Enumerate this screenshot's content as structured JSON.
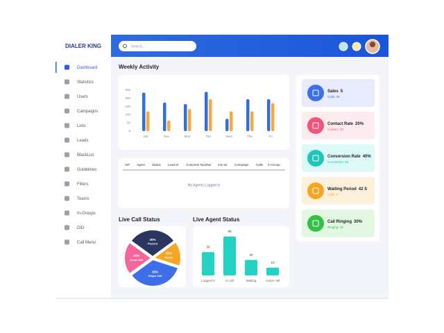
{
  "logo": "DIALER KING",
  "menu": [
    "Dashboard",
    "Statistics",
    "Users",
    "Campaigns",
    "Lists",
    "Leads",
    "BlackList",
    "Guidelines",
    "Filters",
    "Teams",
    "In-Groups",
    "DID",
    "Call Menu"
  ],
  "search_placeholder": "Search...",
  "weekly_activity": {
    "type": "bar",
    "title": "Weekly Activity",
    "categories": [
      "Sat",
      "Sun",
      "Mon",
      "Tue",
      "Wed",
      "Thu",
      "Fri"
    ],
    "series": [
      {
        "color": "#2f6fe0",
        "values": [
          235,
          175,
          165,
          240,
          75,
          195,
          195
        ]
      },
      {
        "color": "#f8a93a",
        "values": [
          120,
          65,
          135,
          195,
          120,
          120,
          170
        ]
      }
    ],
    "ylim": [
      0,
      250
    ],
    "yticks": [
      0,
      50,
      100,
      150,
      200,
      250
    ]
  },
  "table": {
    "headers": [
      "SIP",
      "Agent",
      "Status",
      "Lead Id",
      "Customer Number",
      "mm:ss",
      "Campaign",
      "Calls",
      "In-Group"
    ],
    "empty": "No Agents Logged in"
  },
  "live_call_status": {
    "type": "pie",
    "title": "Live Call Status",
    "categories": [
      "Paused",
      "Break",
      "Dispo Call",
      "Dead Call"
    ],
    "values": [
      30,
      15,
      35,
      20
    ],
    "value_labels": [
      "30%",
      "15%",
      "35%",
      "20%"
    ],
    "colors": [
      "#2b3560",
      "#f5a623",
      "#3e6ee8",
      "#f2669a"
    ]
  },
  "live_agent_status": {
    "type": "bar",
    "title": "Live Agent Status",
    "categories": [
      "Logged in",
      "In call",
      "Waiting",
      "Active call"
    ],
    "values": [
      30,
      50,
      20,
      10
    ],
    "color": "#22d3c5"
  },
  "stats": [
    {
      "title": "Sales",
      "value": "5",
      "sub": "Calls: 25",
      "bg": "#e7ebfd",
      "color": "#3e6ee8"
    },
    {
      "title": "Contact Rate",
      "value": "20%",
      "sub": "Contact: 20",
      "bg": "#fdecef",
      "color": "#f2547a"
    },
    {
      "title": "Conversion Rate",
      "value": "40%",
      "sub": "Conversion: 50",
      "bg": "#dcf9f7",
      "color": "#1fc5b8"
    },
    {
      "title": "Waiting Period",
      "value": "42 S",
      "sub": "Calls: 0",
      "bg": "#fdf1dc",
      "color": "#f5a623"
    },
    {
      "title": "Call Ringing",
      "value": "30%",
      "sub": "Ringing: 15",
      "bg": "#e3f8e2",
      "color": "#34c04a"
    }
  ]
}
